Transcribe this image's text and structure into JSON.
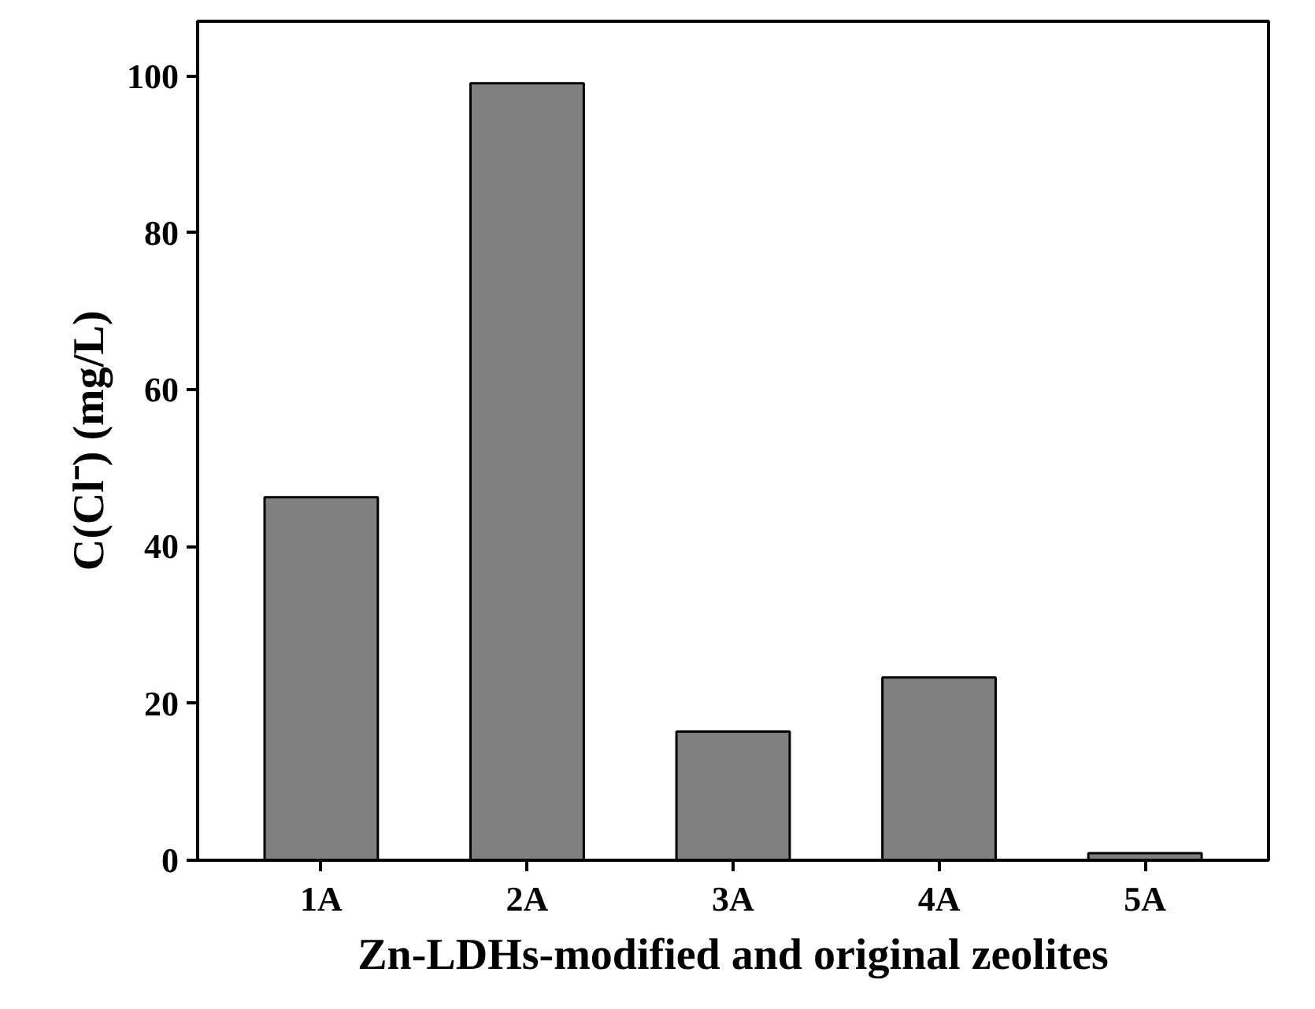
{
  "chart_data": {
    "type": "bar",
    "xlabel": "Zn-LDHs-modified and original zeolites",
    "ylabel": "C(Cl⁻) (mg/L)",
    "categories": [
      "1A",
      "2A",
      "3A",
      "4A",
      "5A"
    ],
    "values": [
      46.3,
      99.1,
      16.4,
      23.3,
      0.9
    ],
    "color": "#808080",
    "ylim": [
      0,
      107
    ],
    "yticks": [
      0,
      20,
      40,
      60,
      80,
      100
    ],
    "grid": false
  }
}
